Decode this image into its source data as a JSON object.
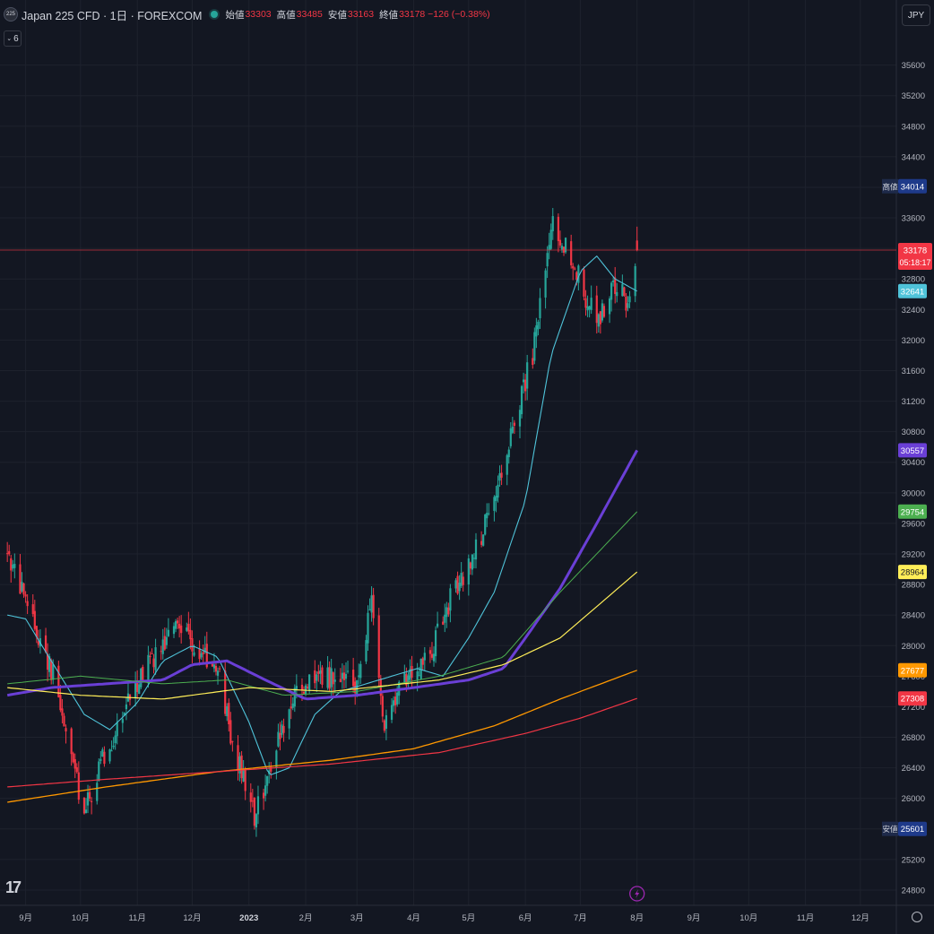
{
  "header": {
    "symbol_badge": "225",
    "title": "Japan 225 CFD · 1日 · FOREXCOM",
    "open_label": "始値",
    "open_value": "33303",
    "high_label": "高値",
    "high_value": "33485",
    "low_label": "安値",
    "low_value": "33163",
    "close_label": "終値",
    "close_value": "33178 −126 (−0.38%)"
  },
  "indicator_toggle": "6",
  "currency": "JPY",
  "logo": "17",
  "colors": {
    "background": "#131722",
    "up": "#26a69a",
    "down": "#f23645",
    "ma20": "#4fc3d9",
    "ma50": "#6a3fd6",
    "ma100": "#4caf50",
    "ma150": "#ffee58",
    "ma200": "#ff9800",
    "ma300": "#f23645"
  },
  "chart_data": {
    "type": "candlestick",
    "y_ticks": [
      35600,
      35200,
      34800,
      34400,
      34000,
      33600,
      33200,
      32800,
      32400,
      32000,
      31600,
      31200,
      30800,
      30400,
      30000,
      29600,
      29200,
      28800,
      28400,
      28000,
      27600,
      27200,
      26800,
      26400,
      26000,
      25600,
      25200,
      24800
    ],
    "ylim": [
      24600,
      36100
    ],
    "x_labels": [
      "9月",
      "10月",
      "11月",
      "12月",
      "2023",
      "2月",
      "3月",
      "4月",
      "5月",
      "6月",
      "7月",
      "8月",
      "9月",
      "10月",
      "11月",
      "12月"
    ],
    "x_label_months": [
      "2022-09",
      "2022-10",
      "2022-11",
      "2022-12",
      "2023-01",
      "2023-02",
      "2023-03",
      "2023-04",
      "2023-05",
      "2023-06",
      "2023-07",
      "2023-08",
      "2023-09",
      "2023-10",
      "2023-11",
      "2023-12"
    ],
    "current_price": {
      "value": 33178,
      "label": "33178",
      "countdown": "05:18:17"
    },
    "price_badges": [
      {
        "prefix": "高値",
        "label": "34014",
        "value": 34014,
        "kind": "high"
      },
      {
        "prefix": "",
        "label": "32641",
        "value": 32641,
        "kind": "ma20"
      },
      {
        "prefix": "",
        "label": "30557",
        "value": 30557,
        "kind": "ma50"
      },
      {
        "prefix": "",
        "label": "29754",
        "value": 29754,
        "kind": "ma100"
      },
      {
        "prefix": "",
        "label": "28964",
        "value": 28964,
        "kind": "ma150"
      },
      {
        "prefix": "",
        "label": "27677",
        "value": 27677,
        "kind": "ma200"
      },
      {
        "prefix": "",
        "label": "27308",
        "value": 27308,
        "kind": "ma300"
      },
      {
        "prefix": "安値",
        "label": "25601",
        "value": 25601,
        "kind": "low"
      }
    ],
    "price_path": [
      [
        "2022-08-22",
        29200
      ],
      [
        "2022-09-05",
        28300
      ],
      [
        "2022-09-15",
        27700
      ],
      [
        "2022-09-26",
        26550
      ],
      [
        "2022-10-03",
        25800
      ],
      [
        "2022-10-13",
        26500
      ],
      [
        "2022-10-24",
        27100
      ],
      [
        "2022-11-02",
        27600
      ],
      [
        "2022-11-14",
        28000
      ],
      [
        "2022-11-24",
        28350
      ],
      [
        "2022-12-05",
        27900
      ],
      [
        "2022-12-15",
        27700
      ],
      [
        "2022-12-22",
        26800
      ],
      [
        "2023-01-04",
        25750
      ],
      [
        "2023-01-12",
        26400
      ],
      [
        "2023-01-23",
        27200
      ],
      [
        "2023-02-01",
        27500
      ],
      [
        "2023-02-16",
        27600
      ],
      [
        "2023-03-01",
        27500
      ],
      [
        "2023-03-09",
        28600
      ],
      [
        "2023-03-16",
        26900
      ],
      [
        "2023-03-28",
        27600
      ],
      [
        "2023-04-10",
        27900
      ],
      [
        "2023-04-21",
        28600
      ],
      [
        "2023-05-02",
        29100
      ],
      [
        "2023-05-16",
        29900
      ],
      [
        "2023-05-26",
        31000
      ],
      [
        "2023-06-05",
        31800
      ],
      [
        "2023-06-16",
        33500
      ],
      [
        "2023-06-26",
        33100
      ],
      [
        "2023-07-05",
        32500
      ],
      [
        "2023-07-12",
        32300
      ],
      [
        "2023-07-20",
        32700
      ],
      [
        "2023-07-27",
        32500
      ],
      [
        "2023-08-01",
        33178
      ]
    ],
    "series": [
      {
        "key": "ma20",
        "points": [
          [
            "2022-08-22",
            28400
          ],
          [
            "2022-09-01",
            28350
          ],
          [
            "2022-09-15",
            27800
          ],
          [
            "2022-10-03",
            27100
          ],
          [
            "2022-10-17",
            26900
          ],
          [
            "2022-11-01",
            27250
          ],
          [
            "2022-11-15",
            27800
          ],
          [
            "2022-12-01",
            28000
          ],
          [
            "2022-12-15",
            27850
          ],
          [
            "2023-01-01",
            27000
          ],
          [
            "2023-01-12",
            26300
          ],
          [
            "2023-01-23",
            26400
          ],
          [
            "2023-02-06",
            27100
          ],
          [
            "2023-02-20",
            27400
          ],
          [
            "2023-03-06",
            27500
          ],
          [
            "2023-03-20",
            27600
          ],
          [
            "2023-04-03",
            27700
          ],
          [
            "2023-04-17",
            27600
          ],
          [
            "2023-05-01",
            28100
          ],
          [
            "2023-05-15",
            28700
          ],
          [
            "2023-06-01",
            29900
          ],
          [
            "2023-06-15",
            31800
          ],
          [
            "2023-07-01",
            32900
          ],
          [
            "2023-07-10",
            33100
          ],
          [
            "2023-07-20",
            32800
          ],
          [
            "2023-08-01",
            32641
          ]
        ]
      },
      {
        "key": "ma50",
        "points": [
          [
            "2022-08-22",
            27350
          ],
          [
            "2022-09-15",
            27450
          ],
          [
            "2022-10-15",
            27500
          ],
          [
            "2022-11-15",
            27550
          ],
          [
            "2022-12-01",
            27750
          ],
          [
            "2022-12-20",
            27800
          ],
          [
            "2023-01-10",
            27550
          ],
          [
            "2023-02-01",
            27300
          ],
          [
            "2023-03-01",
            27350
          ],
          [
            "2023-04-01",
            27450
          ],
          [
            "2023-05-01",
            27550
          ],
          [
            "2023-05-20",
            27700
          ],
          [
            "2023-06-01",
            28100
          ],
          [
            "2023-06-20",
            28750
          ],
          [
            "2023-07-10",
            29600
          ],
          [
            "2023-08-01",
            30557
          ]
        ]
      },
      {
        "key": "ma100",
        "points": [
          [
            "2022-08-22",
            27500
          ],
          [
            "2022-10-01",
            27600
          ],
          [
            "2022-11-15",
            27500
          ],
          [
            "2022-12-20",
            27550
          ],
          [
            "2023-01-20",
            27350
          ],
          [
            "2023-03-01",
            27400
          ],
          [
            "2023-04-15",
            27600
          ],
          [
            "2023-05-20",
            27850
          ],
          [
            "2023-06-20",
            28700
          ],
          [
            "2023-08-01",
            29754
          ]
        ]
      },
      {
        "key": "ma150",
        "points": [
          [
            "2022-08-22",
            27450
          ],
          [
            "2022-10-01",
            27350
          ],
          [
            "2022-11-15",
            27300
          ],
          [
            "2023-01-01",
            27450
          ],
          [
            "2023-02-15",
            27400
          ],
          [
            "2023-04-15",
            27550
          ],
          [
            "2023-05-20",
            27750
          ],
          [
            "2023-06-20",
            28100
          ],
          [
            "2023-08-01",
            28964
          ]
        ]
      },
      {
        "key": "ma200",
        "points": [
          [
            "2022-08-22",
            25950
          ],
          [
            "2022-10-15",
            26150
          ],
          [
            "2022-12-15",
            26350
          ],
          [
            "2023-02-15",
            26500
          ],
          [
            "2023-04-01",
            26650
          ],
          [
            "2023-05-15",
            26950
          ],
          [
            "2023-06-20",
            27300
          ],
          [
            "2023-08-01",
            27677
          ]
        ]
      },
      {
        "key": "ma300",
        "points": [
          [
            "2022-08-22",
            26150
          ],
          [
            "2022-10-15",
            26250
          ],
          [
            "2022-12-15",
            26350
          ],
          [
            "2023-02-15",
            26450
          ],
          [
            "2023-04-15",
            26600
          ],
          [
            "2023-06-01",
            26850
          ],
          [
            "2023-07-01",
            27050
          ],
          [
            "2023-08-01",
            27308
          ]
        ]
      }
    ]
  }
}
